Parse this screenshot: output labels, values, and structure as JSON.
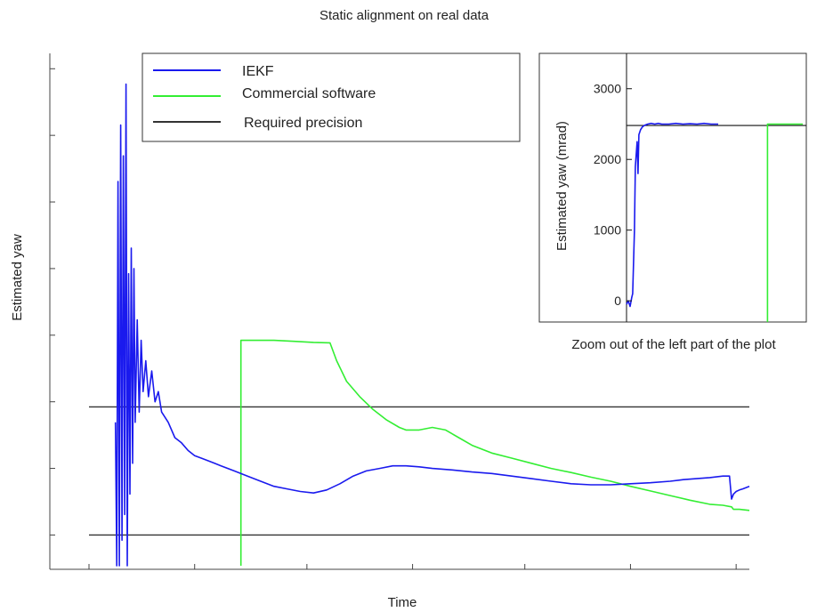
{
  "chart_data": [
    {
      "type": "line",
      "title": "Static alignment on real data",
      "xlabel": "Time",
      "ylabel": "Estimated yaw",
      "tick_labels_shown": false,
      "xlim": [
        0,
        100
      ],
      "ylim": [
        0,
        100
      ],
      "legend": {
        "placement": "top-left"
      },
      "series": [
        {
          "name": "IEKF",
          "color": "#1a1aee",
          "x": [
            4.0,
            4.2,
            4.4,
            4.6,
            4.8,
            5.0,
            5.2,
            5.4,
            5.6,
            5.8,
            6.0,
            6.2,
            6.4,
            6.6,
            6.8,
            7.0,
            7.3,
            7.6,
            7.9,
            8.2,
            8.6,
            9.0,
            9.5,
            10.0,
            10.5,
            11.0,
            12.0,
            13.0,
            14.0,
            15.0,
            16.0,
            17.0,
            18.0,
            19.0,
            20.0,
            22.0,
            24.0,
            26.0,
            28.0,
            30.0,
            32.0,
            34.0,
            36.0,
            38.0,
            40.0,
            42.0,
            44.0,
            46.0,
            48.0,
            50.0,
            52.0,
            55.0,
            58.0,
            61.0,
            64.0,
            67.0,
            70.0,
            73.0,
            76.0,
            79.0,
            82.0,
            85.0,
            88.0,
            90.0,
            92.0,
            94.0,
            96.0,
            97.0,
            97.3,
            97.6,
            98.0,
            98.5,
            99.0,
            100.0
          ],
          "y": [
            28,
            0,
            75,
            0,
            86,
            5,
            80,
            10,
            94,
            0,
            57,
            14,
            62,
            20,
            58,
            28,
            48,
            30,
            44,
            34,
            40,
            33,
            38,
            32,
            34,
            30,
            28,
            25,
            24,
            22.5,
            21.5,
            21,
            20.5,
            20,
            19.5,
            18.5,
            17.5,
            16.5,
            15.5,
            15,
            14.5,
            14.2,
            14.8,
            16,
            17.5,
            18.5,
            19,
            19.5,
            19.5,
            19.3,
            19,
            18.7,
            18.3,
            18,
            17.5,
            17,
            16.5,
            16,
            15.8,
            15.8,
            16,
            16.2,
            16.5,
            16.8,
            17,
            17.2,
            17.5,
            17.5,
            13,
            14,
            14.5,
            14.8,
            15,
            15.5
          ]
        },
        {
          "name": "Commercial software",
          "color": "#33ee33",
          "x": [
            23.0,
            23.01,
            25.0,
            28.0,
            31.0,
            34.0,
            36.5,
            37.5,
            39.0,
            41.0,
            43.0,
            45.0,
            47.0,
            48.0,
            50.0,
            52.0,
            54.0,
            56.0,
            58.0,
            61.0,
            64.0,
            67.0,
            70.0,
            73.0,
            76.0,
            79.0,
            82.0,
            85.0,
            88.0,
            91.0,
            94.0,
            96.0,
            97.3,
            97.6,
            98.5,
            100.0
          ],
          "y": [
            0,
            44,
            44,
            44,
            43.8,
            43.6,
            43.5,
            40,
            36,
            33,
            30.5,
            28.5,
            27,
            26.5,
            26.5,
            27,
            26.5,
            25,
            23.5,
            22,
            21,
            20,
            19,
            18.2,
            17.3,
            16.5,
            15.5,
            14.6,
            13.7,
            12.8,
            12,
            11.8,
            11.5,
            11,
            11,
            10.8
          ]
        },
        {
          "name": "Required precision",
          "color": "#333333",
          "segments": [
            {
              "x": [
                0,
                100
              ],
              "y": [
                31,
                31
              ]
            },
            {
              "x": [
                0,
                100
              ],
              "y": [
                6,
                6
              ]
            }
          ]
        }
      ]
    },
    {
      "type": "line",
      "title": "",
      "caption": "Zoom out of the left part of the plot",
      "xlabel": "",
      "ylabel": "Estimated yaw (mrad)",
      "xlim": [
        0,
        100
      ],
      "ylim": [
        -300,
        3500
      ],
      "yticks": [
        0,
        1000,
        2000,
        3000
      ],
      "series": [
        {
          "name": "IEKF",
          "color": "#1a1aee",
          "x": [
            0,
            1,
            2,
            3,
            3.5,
            4.5,
            5,
            6,
            6.5,
            7,
            8,
            9,
            10,
            11,
            12,
            14,
            16,
            18,
            20,
            24,
            28,
            32,
            36,
            40,
            44,
            48,
            52
          ],
          "y": [
            -50,
            0,
            -80,
            50,
            100,
            1000,
            1900,
            2250,
            1800,
            2350,
            2420,
            2460,
            2480,
            2490,
            2500,
            2510,
            2500,
            2510,
            2500,
            2500,
            2510,
            2500,
            2505,
            2500,
            2510,
            2500,
            2500
          ]
        },
        {
          "name": "Commercial software",
          "color": "#33ee33",
          "x": [
            80,
            80.01,
            100
          ],
          "y": [
            -300,
            2500,
            2500
          ]
        },
        {
          "name": "Required precision",
          "color": "#111111",
          "segments": [
            {
              "x": [
                0,
                100
              ],
              "y": [
                2480,
                2480
              ]
            }
          ]
        }
      ]
    }
  ]
}
